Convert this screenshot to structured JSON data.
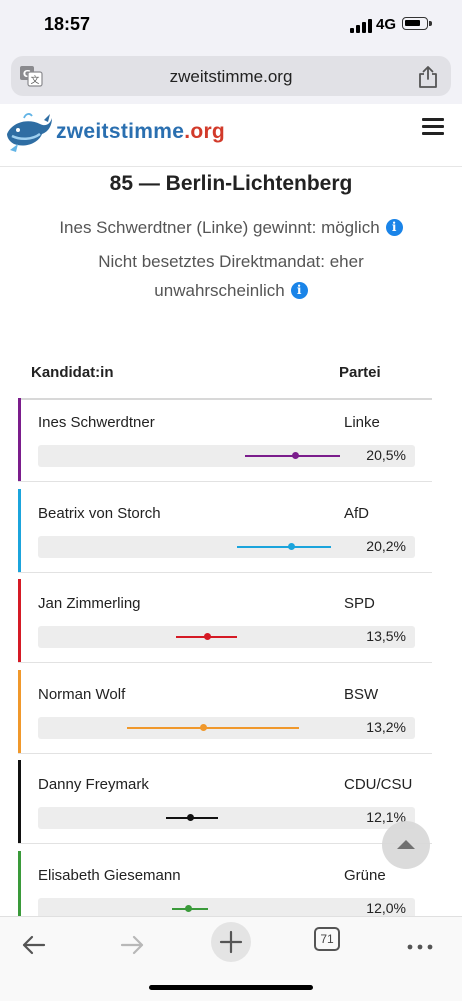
{
  "status_bar": {
    "time": "18:57",
    "network": "4G"
  },
  "browser": {
    "url": "zweitstimme.org",
    "open_tabs": "71"
  },
  "site": {
    "logo_main": "zweitstimme",
    "logo_suffix": ".org"
  },
  "constituency": {
    "title": "85 — Berlin-Lichtenberg",
    "line1": "Ines Schwerdtner (Linke) gewinnt: möglich",
    "line2a": "Nicht besetztes Direktmandat: eher",
    "line2b": "unwahrscheinlich"
  },
  "table": {
    "col_candidate": "Kandidat:in",
    "col_party": "Partei",
    "rows": [
      {
        "name": "Ines Schwerdtner",
        "party": "Linke",
        "percent": "20,5%",
        "estimate_pct": 20.5,
        "range_pct": [
          16.5,
          24.0
        ],
        "color": "#7b1d8c"
      },
      {
        "name": "Beatrix von Storch",
        "party": "AfD",
        "percent": "20,2%",
        "estimate_pct": 20.2,
        "range_pct": [
          15.8,
          23.3
        ],
        "color": "#1ba4dc"
      },
      {
        "name": "Jan Zimmerling",
        "party": "SPD",
        "percent": "13,5%",
        "estimate_pct": 13.5,
        "range_pct": [
          11.0,
          15.8
        ],
        "color": "#d51a25"
      },
      {
        "name": "Norman Wolf",
        "party": "BSW",
        "percent": "13,2%",
        "estimate_pct": 13.2,
        "range_pct": [
          7.1,
          20.8
        ],
        "color": "#f0982b"
      },
      {
        "name": "Danny Freymark",
        "party": "CDU/CSU",
        "percent": "12,1%",
        "estimate_pct": 12.1,
        "range_pct": [
          10.2,
          14.3
        ],
        "color": "#111111"
      },
      {
        "name": "Elisabeth Giesemann",
        "party": "Grüne",
        "percent": "12,0%",
        "estimate_pct": 12.0,
        "range_pct": [
          10.7,
          13.5
        ],
        "color": "#3a9a3a"
      }
    ]
  }
}
